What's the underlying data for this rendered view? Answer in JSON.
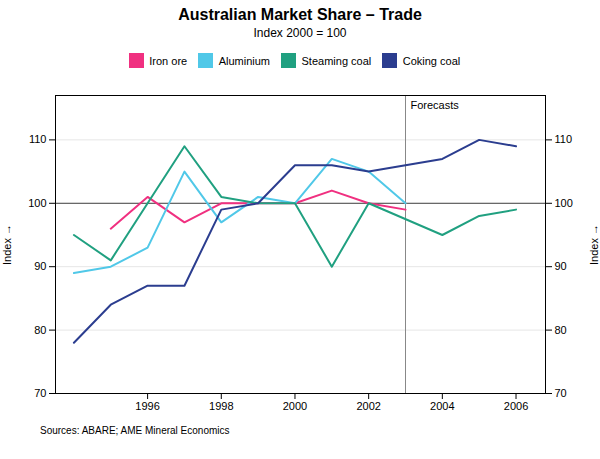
{
  "chart_data": {
    "type": "line",
    "title": "Australian Market Share – Trade",
    "subtitle": "Index 2000 = 100",
    "ylabel": "Index",
    "y2label": "Index",
    "source": "Sources: ABARE; AME Mineral Economics",
    "series": [
      {
        "name": "Iron ore",
        "color": "#f03080",
        "x": [
          1995,
          1996,
          1997,
          1998,
          1999,
          2000,
          2001,
          2002,
          2003
        ],
        "values": [
          96,
          101,
          97,
          100,
          100,
          100,
          102,
          100,
          99
        ]
      },
      {
        "name": "Aluminium",
        "color": "#50c8e8",
        "x": [
          1994,
          1995,
          1996,
          1997,
          1998,
          1999,
          2000,
          2001,
          2002,
          2003
        ],
        "values": [
          89,
          90,
          93,
          105,
          97,
          101,
          100,
          107,
          105,
          100
        ]
      },
      {
        "name": "Steaming coal",
        "color": "#20a080",
        "x": [
          1994,
          1995,
          1996,
          1997,
          1998,
          1999,
          2000,
          2001,
          2002,
          2004,
          2005,
          2006
        ],
        "values": [
          95,
          91,
          100,
          109,
          101,
          100,
          100,
          90,
          100,
          95,
          98,
          99
        ]
      },
      {
        "name": "Coking coal",
        "color": "#2b3d8f",
        "x": [
          1994,
          1995,
          1996,
          1997,
          1998,
          1999,
          2000,
          2001,
          2002,
          2004,
          2005,
          2006
        ],
        "values": [
          78,
          84,
          87,
          87,
          99,
          100,
          106,
          106,
          105,
          107,
          110,
          109
        ]
      }
    ],
    "reference_lines": [
      {
        "axis": "y",
        "value": 100
      },
      {
        "axis": "x",
        "value": 2003,
        "label": "Forecasts"
      }
    ],
    "xlim": [
      1993.5,
      2006.8
    ],
    "xticks": [
      1996,
      1998,
      2000,
      2002,
      2004,
      2006
    ],
    "ylim": [
      70,
      117
    ],
    "yticks": [
      70,
      80,
      90,
      100,
      110
    ],
    "grid": true,
    "legend": "top"
  }
}
